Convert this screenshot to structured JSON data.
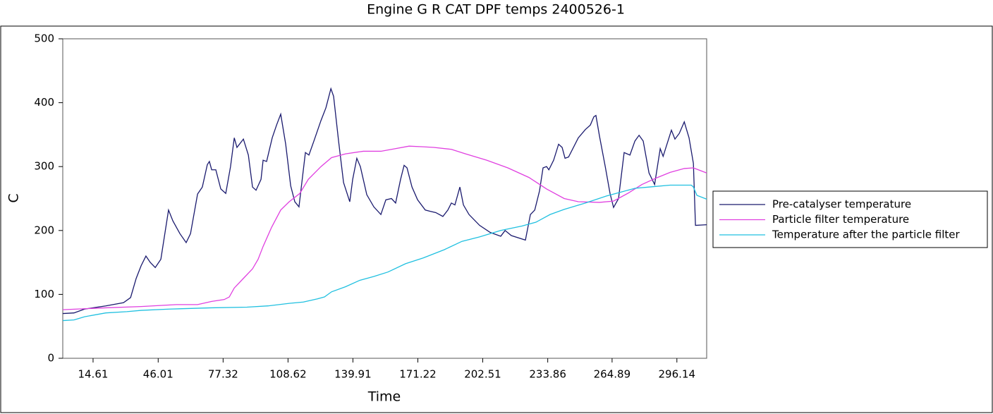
{
  "chart_data": {
    "type": "line",
    "title": "Engine G R  CAT DPF temps 2400526-1",
    "xlabel": "Time",
    "ylabel": "C",
    "xlim": [
      0,
      310.5
    ],
    "xticks": [
      14.61,
      46.01,
      77.32,
      108.62,
      139.91,
      171.22,
      202.51,
      233.86,
      264.89,
      296.14
    ],
    "ylim": [
      0,
      500
    ],
    "yticks": [
      0,
      100,
      200,
      300,
      400,
      500
    ],
    "legend": "right",
    "series": [
      {
        "name": "Pre-catalyser temperature",
        "color": "#1a1a6e",
        "x": [
          0,
          5.4,
          10.5,
          20.7,
          29.3,
          32.7,
          35.4,
          37.8,
          40.1,
          42.2,
          44.6,
          47.3,
          51.0,
          53.1,
          56.5,
          59.5,
          61.6,
          65.0,
          67.3,
          69.7,
          70.7,
          71.8,
          73.8,
          76.2,
          78.6,
          80.9,
          82.7,
          84.0,
          87.1,
          89.5,
          91.5,
          93.2,
          95.6,
          96.6,
          98.3,
          101.0,
          103.1,
          105.1,
          107.5,
          109.9,
          111.9,
          113.9,
          117.0,
          118.7,
          121.1,
          124.5,
          126.9,
          129.3,
          130.6,
          133.0,
          135.4,
          138.4,
          139.8,
          141.8,
          143.5,
          146.6,
          150.0,
          153.4,
          155.8,
          158.5,
          160.5,
          162.9,
          164.6,
          166.0,
          168.4,
          171.1,
          174.8,
          177.2,
          179.9,
          183.3,
          185.7,
          187.4,
          189.1,
          191.5,
          193.2,
          195.9,
          201.0,
          206.1,
          211.2,
          213.3,
          216.3,
          223.1,
          225.5,
          227.6,
          229.9,
          231.6,
          233.3,
          234.4,
          236.7,
          239.1,
          240.8,
          242.2,
          243.9,
          248.6,
          252.0,
          254.4,
          256.1,
          257.1,
          258.8,
          261.6,
          263.9,
          265.6,
          268.0,
          270.7,
          273.5,
          275.9,
          277.9,
          279.9,
          282.7,
          285.4,
          288.1,
          289.5,
          293.5,
          295.2,
          297.3,
          299.7,
          302.0,
          304.1,
          305.1,
          310.5
        ],
        "values": [
          70,
          71,
          77,
          82,
          87,
          95,
          125,
          145,
          160,
          150,
          142,
          155,
          232,
          215,
          195,
          181,
          195,
          257,
          268,
          303,
          308,
          295,
          295,
          265,
          258,
          300,
          345,
          330,
          343,
          318,
          268,
          263,
          280,
          310,
          308,
          345,
          365,
          382,
          335,
          270,
          245,
          237,
          322,
          318,
          340,
          372,
          392,
          422,
          410,
          340,
          275,
          245,
          280,
          313,
          300,
          256,
          237,
          225,
          248,
          250,
          243,
          280,
          302,
          298,
          268,
          248,
          232,
          230,
          228,
          222,
          232,
          243,
          240,
          268,
          240,
          225,
          208,
          197,
          191,
          200,
          192,
          185,
          225,
          232,
          262,
          298,
          300,
          295,
          310,
          335,
          330,
          313,
          315,
          345,
          358,
          365,
          378,
          380,
          348,
          300,
          258,
          236,
          250,
          322,
          318,
          340,
          349,
          340,
          290,
          272,
          328,
          316,
          357,
          343,
          352,
          370,
          345,
          305,
          208,
          209
        ]
      },
      {
        "name": "Particle filter temperature",
        "color": "#e040e0",
        "x": [
          0,
          20.7,
          37.8,
          54.8,
          65.0,
          71.8,
          77.9,
          80.3,
          82.7,
          87.1,
          91.5,
          94.2,
          96.6,
          100.7,
          105.1,
          109.2,
          114.3,
          118.4,
          124.5,
          129.6,
          136.4,
          144.9,
          153.4,
          160.2,
          167.0,
          173.8,
          178.9,
          187.4,
          194.2,
          204.4,
          214.6,
          224.8,
          233.3,
          241.8,
          248.6,
          258.8,
          265.6,
          272.4,
          279.3,
          286.1,
          292.9,
          299.7,
          304.1,
          306.5,
          310.5
        ],
        "values": [
          76,
          79,
          81,
          84,
          84,
          89,
          92,
          96,
          110,
          125,
          140,
          155,
          175,
          205,
          232,
          245,
          258,
          280,
          300,
          314,
          320,
          324,
          324,
          328,
          332,
          331,
          330,
          327,
          320,
          310,
          298,
          283,
          265,
          250,
          245,
          244,
          246,
          258,
          272,
          282,
          291,
          297,
          298,
          295,
          290
        ]
      },
      {
        "name": "Temperature after the particle filter",
        "color": "#20c0e0",
        "x": [
          0,
          5.4,
          10.5,
          20.7,
          30.9,
          37.8,
          51.4,
          71.8,
          88.8,
          99.0,
          109.2,
          116.0,
          122.8,
          126.2,
          129.6,
          136.4,
          143.2,
          150.0,
          156.8,
          165.3,
          173.8,
          184.0,
          192.5,
          201.0,
          211.2,
          221.4,
          228.2,
          235.0,
          241.8,
          252.0,
          262.2,
          269.0,
          275.9,
          282.7,
          292.9,
          303.1,
          304.1,
          305.8,
          310.5
        ],
        "values": [
          59,
          60,
          65,
          71,
          73,
          75,
          77,
          79,
          80,
          82,
          86,
          88,
          93,
          96,
          104,
          112,
          122,
          128,
          135,
          148,
          157,
          170,
          183,
          190,
          200,
          207,
          213,
          225,
          233,
          243,
          254,
          260,
          266,
          268,
          271,
          271,
          268,
          255,
          249
        ]
      }
    ]
  }
}
